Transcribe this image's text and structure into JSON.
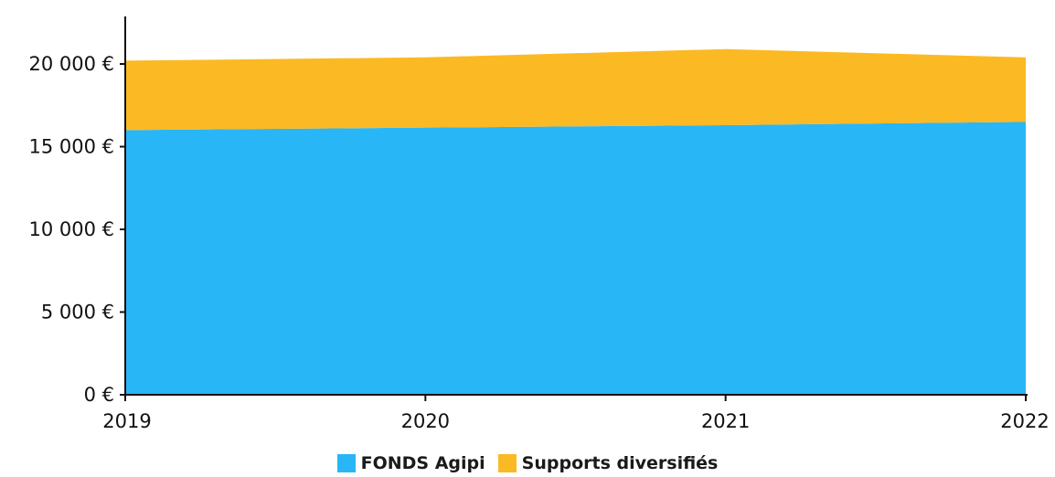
{
  "chart_data": {
    "type": "area",
    "stacked": true,
    "x": [
      "2019",
      "2020",
      "2021",
      "2022"
    ],
    "x_tick_labels": [
      "2019",
      "2020",
      "2021",
      "2022"
    ],
    "y_tick_values": [
      0,
      5000,
      10000,
      15000,
      20000
    ],
    "y_tick_labels": [
      "0 €",
      "5 000 €",
      "10 000 €",
      "15 000 €",
      "20 000 €"
    ],
    "ylim": [
      0,
      23000
    ],
    "grid": false,
    "legend_position": "bottom",
    "series": [
      {
        "name": "FONDS Agipi",
        "color": "#29B6F6",
        "values": [
          16000,
          16150,
          16300,
          16500
        ]
      },
      {
        "name": "Supports diversifiés",
        "color": "#FBB923",
        "values": [
          4200,
          4250,
          4600,
          3900
        ]
      }
    ],
    "title": "",
    "xlabel": "",
    "ylabel": ""
  }
}
